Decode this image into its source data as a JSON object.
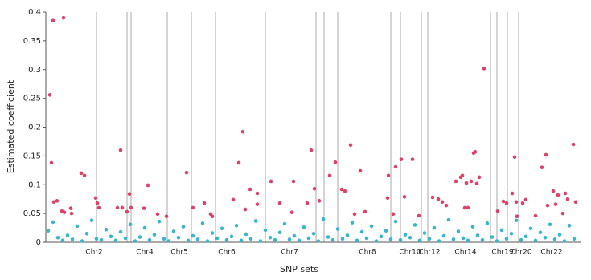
{
  "chart_data": {
    "type": "scatter",
    "ylabel": "Estimated coefficient",
    "xlabel": "SNP sets",
    "xlim": [
      0,
      665
    ],
    "ylim": [
      0,
      0.4
    ],
    "yticks": [
      0,
      0.05,
      0.1,
      0.15,
      0.2,
      0.25,
      0.3,
      0.35,
      0.4
    ],
    "xticks": [
      {
        "value": 60,
        "label": "Chr2"
      },
      {
        "value": 123,
        "label": "Chr4"
      },
      {
        "value": 166,
        "label": "Chr5"
      },
      {
        "value": 225,
        "label": "Chr6"
      },
      {
        "value": 303,
        "label": "Chr7"
      },
      {
        "value": 400,
        "label": "Chr8"
      },
      {
        "value": 453,
        "label": "Chr10"
      },
      {
        "value": 477,
        "label": "Chr12"
      },
      {
        "value": 522,
        "label": "Chr14"
      },
      {
        "value": 568,
        "label": "Chr19"
      },
      {
        "value": 591,
        "label": "Chr20"
      },
      {
        "value": 629,
        "label": "Chr22"
      }
    ],
    "boundaries": [
      63,
      101,
      106,
      151,
      181,
      211,
      273,
      336,
      346,
      363,
      429,
      441,
      467,
      475,
      553,
      561,
      574,
      588
    ],
    "series": [
      {
        "color": "#3bb5c8",
        "x": [
          3,
          9,
          15,
          21,
          27,
          33,
          39,
          45,
          51,
          57,
          63,
          69,
          75,
          81,
          87,
          93,
          99,
          105,
          111,
          117,
          123,
          129,
          135,
          141,
          147,
          153,
          159,
          165,
          171,
          177,
          183,
          189,
          195,
          201,
          207,
          213,
          219,
          225,
          231,
          237,
          243,
          249,
          255,
          261,
          267,
          273,
          279,
          285,
          291,
          297,
          303,
          309,
          315,
          321,
          327,
          333,
          339,
          345,
          351,
          357,
          363,
          369,
          375,
          381,
          387,
          393,
          399,
          405,
          411,
          417,
          423,
          429,
          435,
          441,
          447,
          453,
          459,
          465,
          471,
          477,
          483,
          489,
          495,
          501,
          507,
          513,
          519,
          525,
          531,
          537,
          543,
          549,
          555,
          561,
          567,
          573,
          579,
          585,
          591,
          597,
          603,
          609,
          615,
          621,
          627,
          633,
          639,
          645,
          651,
          657
        ],
        "values": [
          0.02,
          0.035,
          0.008,
          0.003,
          0.012,
          0.005,
          0.028,
          0.002,
          0.015,
          0.038,
          0.006,
          0.004,
          0.022,
          0.01,
          0.003,
          0.018,
          0.007,
          0.031,
          0.002,
          0.009,
          0.025,
          0.004,
          0.013,
          0.036,
          0.006,
          0.002,
          0.019,
          0.008,
          0.027,
          0.003,
          0.011,
          0.005,
          0.033,
          0.002,
          0.016,
          0.007,
          0.024,
          0.004,
          0.01,
          0.029,
          0.003,
          0.014,
          0.006,
          0.037,
          0.002,
          0.021,
          0.008,
          0.004,
          0.017,
          0.032,
          0.005,
          0.011,
          0.003,
          0.026,
          0.007,
          0.015,
          0.002,
          0.04,
          0.009,
          0.004,
          0.023,
          0.006,
          0.012,
          0.034,
          0.003,
          0.018,
          0.007,
          0.028,
          0.002,
          0.01,
          0.02,
          0.005,
          0.036,
          0.004,
          0.013,
          0.008,
          0.03,
          0.003,
          0.016,
          0.006,
          0.025,
          0.002,
          0.011,
          0.039,
          0.005,
          0.019,
          0.007,
          0.003,
          0.027,
          0.012,
          0.004,
          0.033,
          0.009,
          0.002,
          0.021,
          0.006,
          0.015,
          0.038,
          0.004,
          0.01,
          0.024,
          0.003,
          0.017,
          0.008,
          0.031,
          0.005,
          0.013,
          0.002,
          0.029,
          0.006
        ]
      },
      {
        "color": "#d9436a",
        "x": [
          5,
          7,
          9,
          22,
          10,
          14,
          20,
          23,
          31,
          32,
          44,
          48,
          62,
          64,
          66,
          89,
          93,
          95,
          101,
          104,
          106,
          122,
          127,
          139,
          150,
          175,
          183,
          197,
          205,
          207,
          233,
          240,
          245,
          248,
          254,
          263,
          263,
          280,
          291,
          306,
          308,
          325,
          330,
          334,
          340,
          353,
          360,
          368,
          372,
          379,
          384,
          391,
          397,
          425,
          426,
          432,
          435,
          442,
          446,
          456,
          464,
          481,
          488,
          493,
          498,
          510,
          516,
          518,
          521,
          523,
          525,
          529,
          532,
          534,
          536,
          539,
          545,
          562,
          569,
          573,
          580,
          583,
          585,
          586,
          593,
          597,
          609,
          617,
          622,
          624,
          631,
          634,
          637,
          643,
          646,
          649,
          656,
          659
        ],
        "values": [
          0.256,
          0.138,
          0.385,
          0.39,
          0.07,
          0.072,
          0.054,
          0.052,
          0.059,
          0.05,
          0.12,
          0.116,
          0.077,
          0.068,
          0.06,
          0.06,
          0.16,
          0.06,
          0.053,
          0.084,
          0.06,
          0.059,
          0.099,
          0.049,
          0.045,
          0.121,
          0.06,
          0.068,
          0.049,
          0.045,
          0.074,
          0.138,
          0.192,
          0.057,
          0.092,
          0.085,
          0.066,
          0.106,
          0.068,
          0.052,
          0.106,
          0.068,
          0.16,
          0.093,
          0.072,
          0.116,
          0.139,
          0.092,
          0.089,
          0.169,
          0.049,
          0.124,
          0.053,
          0.077,
          0.116,
          0.049,
          0.131,
          0.144,
          0.079,
          0.144,
          0.046,
          0.078,
          0.075,
          0.07,
          0.064,
          0.106,
          0.113,
          0.116,
          0.06,
          0.103,
          0.06,
          0.106,
          0.155,
          0.157,
          0.102,
          0.113,
          0.302,
          0.054,
          0.071,
          0.068,
          0.085,
          0.148,
          0.07,
          0.045,
          0.068,
          0.074,
          0.046,
          0.13,
          0.152,
          0.064,
          0.089,
          0.066,
          0.082,
          0.05,
          0.085,
          0.075,
          0.17,
          0.07
        ]
      }
    ]
  }
}
